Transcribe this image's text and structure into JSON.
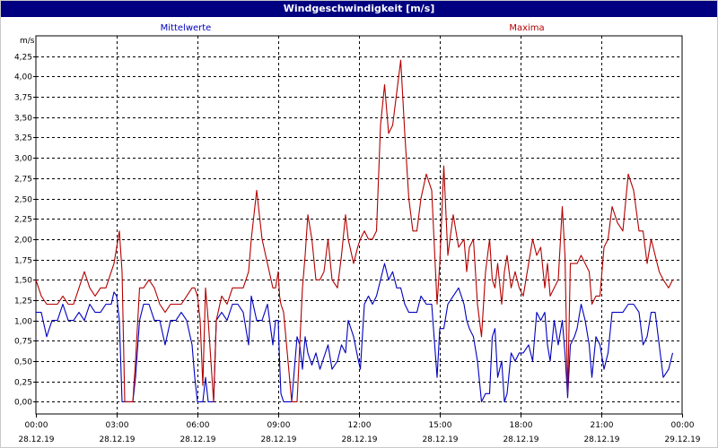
{
  "chart_data": {
    "type": "line",
    "title": "Windgeschwindigkeit [m/s]",
    "ylabel": "m/s",
    "xlabel": "",
    "ylim": [
      -0.15,
      4.5
    ],
    "y_ticks": [
      "0,00",
      "0,25",
      "0,50",
      "0,75",
      "1,00",
      "1,25",
      "1,50",
      "1,75",
      "2,00",
      "2,25",
      "2,50",
      "2,75",
      "3,00",
      "3,25",
      "3,50",
      "3,75",
      "4,00",
      "4,25"
    ],
    "x_range_hours": [
      0,
      24
    ],
    "x_ticks": [
      {
        "time": "00:00",
        "date": "28.12.19"
      },
      {
        "time": "03:00",
        "date": "28.12.19"
      },
      {
        "time": "06:00",
        "date": "28.12.19"
      },
      {
        "time": "09:00",
        "date": "28.12.19"
      },
      {
        "time": "12:00",
        "date": "28.12.19"
      },
      {
        "time": "15:00",
        "date": "28.12.19"
      },
      {
        "time": "18:00",
        "date": "28.12.19"
      },
      {
        "time": "21:00",
        "date": "28.12.19"
      },
      {
        "time": "00:00",
        "date": "29.12.19"
      }
    ],
    "grid": true,
    "series": [
      {
        "name": "Mittelwerte",
        "color": "#0000c0",
        "points": [
          [
            0.0,
            1.1
          ],
          [
            0.2,
            1.1
          ],
          [
            0.4,
            0.8
          ],
          [
            0.6,
            1.0
          ],
          [
            0.8,
            1.0
          ],
          [
            1.0,
            1.2
          ],
          [
            1.2,
            1.0
          ],
          [
            1.4,
            1.0
          ],
          [
            1.6,
            1.1
          ],
          [
            1.8,
            1.0
          ],
          [
            2.0,
            1.2
          ],
          [
            2.2,
            1.1
          ],
          [
            2.4,
            1.1
          ],
          [
            2.6,
            1.2
          ],
          [
            2.8,
            1.2
          ],
          [
            2.9,
            1.35
          ],
          [
            3.0,
            1.3
          ],
          [
            3.1,
            1.0
          ],
          [
            3.2,
            0.0
          ],
          [
            3.3,
            0.0
          ],
          [
            3.5,
            0.0
          ],
          [
            3.6,
            0.0
          ],
          [
            3.7,
            0.3
          ],
          [
            3.85,
            1.0
          ],
          [
            4.0,
            1.2
          ],
          [
            4.2,
            1.2
          ],
          [
            4.4,
            1.0
          ],
          [
            4.6,
            1.0
          ],
          [
            4.8,
            0.7
          ],
          [
            5.0,
            1.0
          ],
          [
            5.2,
            1.0
          ],
          [
            5.4,
            1.1
          ],
          [
            5.6,
            1.0
          ],
          [
            5.8,
            0.7
          ],
          [
            5.9,
            0.3
          ],
          [
            6.0,
            0.0
          ],
          [
            6.1,
            0.0
          ],
          [
            6.2,
            0.0
          ],
          [
            6.3,
            0.3
          ],
          [
            6.4,
            0.0
          ],
          [
            6.6,
            0.0
          ],
          [
            6.7,
            1.0
          ],
          [
            6.9,
            1.1
          ],
          [
            7.1,
            1.0
          ],
          [
            7.3,
            1.2
          ],
          [
            7.5,
            1.2
          ],
          [
            7.7,
            1.1
          ],
          [
            7.9,
            0.7
          ],
          [
            8.0,
            1.3
          ],
          [
            8.2,
            1.0
          ],
          [
            8.4,
            1.0
          ],
          [
            8.6,
            1.2
          ],
          [
            8.8,
            0.7
          ],
          [
            8.9,
            1.0
          ],
          [
            9.0,
            1.0
          ],
          [
            9.05,
            0.5
          ],
          [
            9.1,
            0.1
          ],
          [
            9.2,
            0.0
          ],
          [
            9.5,
            0.0
          ],
          [
            9.7,
            0.8
          ],
          [
            9.8,
            0.7
          ],
          [
            9.9,
            0.4
          ],
          [
            10.0,
            0.8
          ],
          [
            10.1,
            0.6
          ],
          [
            10.25,
            0.45
          ],
          [
            10.4,
            0.6
          ],
          [
            10.55,
            0.4
          ],
          [
            10.7,
            0.55
          ],
          [
            10.85,
            0.7
          ],
          [
            11.0,
            0.4
          ],
          [
            11.2,
            0.5
          ],
          [
            11.35,
            0.7
          ],
          [
            11.5,
            0.6
          ],
          [
            11.6,
            1.0
          ],
          [
            11.8,
            0.8
          ],
          [
            11.95,
            0.55
          ],
          [
            12.05,
            0.4
          ],
          [
            12.2,
            1.2
          ],
          [
            12.35,
            1.3
          ],
          [
            12.5,
            1.2
          ],
          [
            12.65,
            1.3
          ],
          [
            12.8,
            1.5
          ],
          [
            12.95,
            1.7
          ],
          [
            13.1,
            1.5
          ],
          [
            13.25,
            1.6
          ],
          [
            13.4,
            1.4
          ],
          [
            13.55,
            1.4
          ],
          [
            13.7,
            1.2
          ],
          [
            13.85,
            1.1
          ],
          [
            14.0,
            1.1
          ],
          [
            14.15,
            1.1
          ],
          [
            14.3,
            1.3
          ],
          [
            14.5,
            1.2
          ],
          [
            14.7,
            1.2
          ],
          [
            14.9,
            0.3
          ],
          [
            15.0,
            0.9
          ],
          [
            15.15,
            0.9
          ],
          [
            15.3,
            1.2
          ],
          [
            15.5,
            1.3
          ],
          [
            15.7,
            1.4
          ],
          [
            15.9,
            1.2
          ],
          [
            16.0,
            1.0
          ],
          [
            16.1,
            0.9
          ],
          [
            16.25,
            0.8
          ],
          [
            16.4,
            0.5
          ],
          [
            16.55,
            0.0
          ],
          [
            16.7,
            0.1
          ],
          [
            16.85,
            0.1
          ],
          [
            16.95,
            0.8
          ],
          [
            17.05,
            0.9
          ],
          [
            17.15,
            0.3
          ],
          [
            17.3,
            0.5
          ],
          [
            17.4,
            0.0
          ],
          [
            17.5,
            0.1
          ],
          [
            17.65,
            0.6
          ],
          [
            17.8,
            0.5
          ],
          [
            17.95,
            0.6
          ],
          [
            18.1,
            0.6
          ],
          [
            18.3,
            0.7
          ],
          [
            18.45,
            0.5
          ],
          [
            18.6,
            1.1
          ],
          [
            18.75,
            1.0
          ],
          [
            18.9,
            1.1
          ],
          [
            19.0,
            0.7
          ],
          [
            19.1,
            0.5
          ],
          [
            19.25,
            1.0
          ],
          [
            19.4,
            0.7
          ],
          [
            19.55,
            1.0
          ],
          [
            19.65,
            0.6
          ],
          [
            19.75,
            0.05
          ],
          [
            19.85,
            0.7
          ],
          [
            20.0,
            0.8
          ],
          [
            20.1,
            0.9
          ],
          [
            20.25,
            1.2
          ],
          [
            20.4,
            1.0
          ],
          [
            20.55,
            0.7
          ],
          [
            20.65,
            0.3
          ],
          [
            20.8,
            0.8
          ],
          [
            20.95,
            0.7
          ],
          [
            21.1,
            0.4
          ],
          [
            21.25,
            0.6
          ],
          [
            21.4,
            1.1
          ],
          [
            21.6,
            1.1
          ],
          [
            21.8,
            1.1
          ],
          [
            22.0,
            1.2
          ],
          [
            22.2,
            1.2
          ],
          [
            22.4,
            1.1
          ],
          [
            22.55,
            0.7
          ],
          [
            22.7,
            0.8
          ],
          [
            22.85,
            1.1
          ],
          [
            23.0,
            1.1
          ],
          [
            23.15,
            0.7
          ],
          [
            23.3,
            0.3
          ],
          [
            23.5,
            0.4
          ],
          [
            23.65,
            0.6
          ]
        ]
      },
      {
        "name": "Maxima",
        "color": "#b40000",
        "points": [
          [
            0.0,
            1.5
          ],
          [
            0.2,
            1.3
          ],
          [
            0.4,
            1.2
          ],
          [
            0.6,
            1.2
          ],
          [
            0.8,
            1.2
          ],
          [
            1.0,
            1.3
          ],
          [
            1.2,
            1.2
          ],
          [
            1.4,
            1.2
          ],
          [
            1.6,
            1.4
          ],
          [
            1.8,
            1.6
          ],
          [
            2.0,
            1.4
          ],
          [
            2.2,
            1.3
          ],
          [
            2.4,
            1.4
          ],
          [
            2.6,
            1.4
          ],
          [
            2.8,
            1.6
          ],
          [
            2.9,
            1.7
          ],
          [
            3.0,
            1.9
          ],
          [
            3.1,
            2.1
          ],
          [
            3.2,
            1.6
          ],
          [
            3.3,
            0.0
          ],
          [
            3.5,
            0.0
          ],
          [
            3.6,
            0.0
          ],
          [
            3.7,
            0.5
          ],
          [
            3.85,
            1.4
          ],
          [
            4.0,
            1.4
          ],
          [
            4.2,
            1.5
          ],
          [
            4.4,
            1.4
          ],
          [
            4.6,
            1.2
          ],
          [
            4.8,
            1.1
          ],
          [
            5.0,
            1.2
          ],
          [
            5.2,
            1.2
          ],
          [
            5.4,
            1.2
          ],
          [
            5.6,
            1.3
          ],
          [
            5.8,
            1.4
          ],
          [
            5.9,
            1.4
          ],
          [
            6.0,
            1.3
          ],
          [
            6.1,
            1.0
          ],
          [
            6.2,
            0.2
          ],
          [
            6.3,
            1.4
          ],
          [
            6.4,
            1.0
          ],
          [
            6.6,
            0.0
          ],
          [
            6.7,
            1.0
          ],
          [
            6.9,
            1.3
          ],
          [
            7.1,
            1.2
          ],
          [
            7.3,
            1.4
          ],
          [
            7.5,
            1.4
          ],
          [
            7.7,
            1.4
          ],
          [
            7.9,
            1.6
          ],
          [
            8.0,
            2.0
          ],
          [
            8.2,
            2.6
          ],
          [
            8.4,
            2.0
          ],
          [
            8.6,
            1.7
          ],
          [
            8.8,
            1.4
          ],
          [
            8.9,
            1.4
          ],
          [
            9.0,
            1.6
          ],
          [
            9.05,
            1.3
          ],
          [
            9.1,
            1.2
          ],
          [
            9.2,
            1.1
          ],
          [
            9.5,
            0.0
          ],
          [
            9.7,
            0.0
          ],
          [
            9.8,
            0.7
          ],
          [
            9.9,
            1.4
          ],
          [
            10.0,
            1.8
          ],
          [
            10.1,
            2.3
          ],
          [
            10.25,
            2.0
          ],
          [
            10.4,
            1.5
          ],
          [
            10.55,
            1.5
          ],
          [
            10.7,
            1.6
          ],
          [
            10.85,
            2.0
          ],
          [
            11.0,
            1.5
          ],
          [
            11.2,
            1.4
          ],
          [
            11.35,
            1.8
          ],
          [
            11.5,
            2.3
          ],
          [
            11.6,
            2.0
          ],
          [
            11.8,
            1.7
          ],
          [
            11.95,
            1.9
          ],
          [
            12.05,
            2.0
          ],
          [
            12.2,
            2.1
          ],
          [
            12.35,
            2.0
          ],
          [
            12.5,
            2.0
          ],
          [
            12.65,
            2.1
          ],
          [
            12.8,
            3.4
          ],
          [
            12.95,
            3.9
          ],
          [
            13.1,
            3.3
          ],
          [
            13.25,
            3.4
          ],
          [
            13.4,
            3.8
          ],
          [
            13.55,
            4.2
          ],
          [
            13.7,
            3.3
          ],
          [
            13.85,
            2.5
          ],
          [
            14.0,
            2.1
          ],
          [
            14.15,
            2.1
          ],
          [
            14.3,
            2.5
          ],
          [
            14.5,
            2.8
          ],
          [
            14.7,
            2.6
          ],
          [
            14.9,
            1.2
          ],
          [
            15.0,
            1.7
          ],
          [
            15.15,
            2.9
          ],
          [
            15.3,
            1.8
          ],
          [
            15.5,
            2.3
          ],
          [
            15.7,
            1.9
          ],
          [
            15.9,
            2.0
          ],
          [
            16.0,
            1.6
          ],
          [
            16.1,
            1.9
          ],
          [
            16.25,
            2.0
          ],
          [
            16.4,
            1.2
          ],
          [
            16.55,
            0.8
          ],
          [
            16.7,
            1.6
          ],
          [
            16.85,
            2.0
          ],
          [
            16.95,
            1.5
          ],
          [
            17.05,
            1.4
          ],
          [
            17.15,
            1.7
          ],
          [
            17.3,
            1.2
          ],
          [
            17.4,
            1.6
          ],
          [
            17.5,
            1.8
          ],
          [
            17.65,
            1.4
          ],
          [
            17.8,
            1.6
          ],
          [
            17.95,
            1.4
          ],
          [
            18.1,
            1.3
          ],
          [
            18.3,
            1.7
          ],
          [
            18.45,
            2.0
          ],
          [
            18.6,
            1.8
          ],
          [
            18.75,
            1.9
          ],
          [
            18.9,
            1.4
          ],
          [
            19.0,
            1.7
          ],
          [
            19.1,
            1.3
          ],
          [
            19.25,
            1.4
          ],
          [
            19.4,
            1.5
          ],
          [
            19.55,
            2.4
          ],
          [
            19.65,
            1.8
          ],
          [
            19.75,
            0.1
          ],
          [
            19.85,
            1.7
          ],
          [
            20.0,
            1.7
          ],
          [
            20.1,
            1.7
          ],
          [
            20.25,
            1.8
          ],
          [
            20.4,
            1.7
          ],
          [
            20.55,
            1.6
          ],
          [
            20.65,
            1.2
          ],
          [
            20.8,
            1.3
          ],
          [
            20.95,
            1.3
          ],
          [
            21.1,
            1.9
          ],
          [
            21.25,
            2.0
          ],
          [
            21.4,
            2.4
          ],
          [
            21.6,
            2.2
          ],
          [
            21.8,
            2.1
          ],
          [
            22.0,
            2.8
          ],
          [
            22.2,
            2.6
          ],
          [
            22.4,
            2.1
          ],
          [
            22.55,
            2.1
          ],
          [
            22.7,
            1.7
          ],
          [
            22.85,
            2.0
          ],
          [
            23.0,
            1.8
          ],
          [
            23.15,
            1.6
          ],
          [
            23.3,
            1.5
          ],
          [
            23.5,
            1.4
          ],
          [
            23.65,
            1.5
          ]
        ]
      }
    ]
  }
}
